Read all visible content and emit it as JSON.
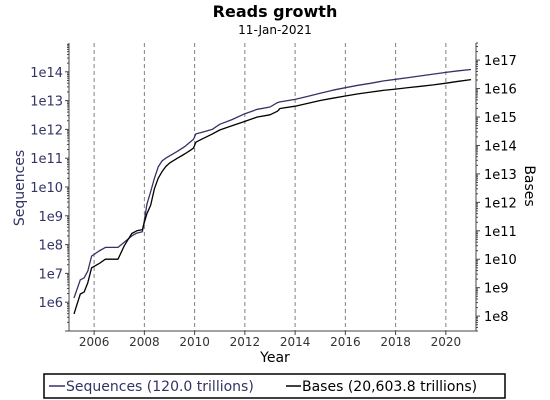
{
  "chart_data": {
    "type": "line",
    "title": "Reads growth",
    "subtitle": "11-Jan-2021",
    "xlabel": "Year",
    "ylabel_left": "Sequences",
    "ylabel_right": "Bases",
    "x_range": [
      2005.0,
      2021.2
    ],
    "x_ticks": [
      {
        "value": 2006,
        "label": "2006"
      },
      {
        "value": 2008,
        "label": "2008"
      },
      {
        "value": 2010,
        "label": "2010"
      },
      {
        "value": 2012,
        "label": "2012"
      },
      {
        "value": 2014,
        "label": "2014"
      },
      {
        "value": 2016,
        "label": "2016"
      },
      {
        "value": 2018,
        "label": "2018"
      },
      {
        "value": 2020,
        "label": "2020"
      }
    ],
    "y_left_scale": "log",
    "y_left_range": [
      100000.0,
      1000000000000000.0
    ],
    "y_left_ticks": [
      {
        "value": 1000000.0,
        "label": "1e6"
      },
      {
        "value": 10000000.0,
        "label": "1e7"
      },
      {
        "value": 100000000.0,
        "label": "1e8"
      },
      {
        "value": 1000000000.0,
        "label": "1e9"
      },
      {
        "value": 10000000000.0,
        "label": "1e10"
      },
      {
        "value": 100000000000.0,
        "label": "1e11"
      },
      {
        "value": 1000000000000.0,
        "label": "1e12"
      },
      {
        "value": 10000000000000.0,
        "label": "1e13"
      },
      {
        "value": 100000000000000.0,
        "label": "1e14"
      }
    ],
    "y_right_scale": "log",
    "y_right_range": [
      30000000.0,
      4e+17
    ],
    "y_right_ticks": [
      {
        "value": 100000000.0,
        "label": "1e8"
      },
      {
        "value": 1000000000.0,
        "label": "1e9"
      },
      {
        "value": 10000000000.0,
        "label": "1e10"
      },
      {
        "value": 100000000000.0,
        "label": "1e11"
      },
      {
        "value": 1000000000000.0,
        "label": "1e12"
      },
      {
        "value": 10000000000000.0,
        "label": "1e13"
      },
      {
        "value": 100000000000000.0,
        "label": "1e14"
      },
      {
        "value": 1000000000000000.0,
        "label": "1e15"
      },
      {
        "value": 1e+16,
        "label": "1e16"
      },
      {
        "value": 1e+17,
        "label": "1e17"
      }
    ],
    "vertical_grid": true,
    "legend_position": "bottom",
    "series": [
      {
        "name": "Sequences (120.0 trillions)",
        "axis": "left",
        "color": "#333366",
        "x": [
          2005.2,
          2005.45,
          2005.6,
          2005.75,
          2005.9,
          2006.2,
          2006.45,
          2006.7,
          2006.95,
          2007.2,
          2007.5,
          2007.7,
          2007.92,
          2008.0,
          2008.1,
          2008.25,
          2008.4,
          2008.55,
          2008.7,
          2008.85,
          2009.0,
          2009.3,
          2009.6,
          2009.8,
          2009.95,
          2010.05,
          2010.3,
          2010.7,
          2011.0,
          2011.5,
          2012.0,
          2012.5,
          2013.0,
          2013.3,
          2013.4,
          2014.0,
          2014.5,
          2015.0,
          2015.5,
          2016.0,
          2016.5,
          2017.0,
          2017.5,
          2018.0,
          2018.5,
          2019.0,
          2019.5,
          2020.0,
          2020.5,
          2021.0
        ],
        "values": [
          1400000.0,
          6000000.0,
          7000000.0,
          12000000.0,
          40000000.0,
          60000000.0,
          80000000.0,
          80000000.0,
          80000000.0,
          120000000.0,
          200000000.0,
          250000000.0,
          280000000.0,
          700000000.0,
          2500000000.0,
          7000000000.0,
          20000000000.0,
          50000000000.0,
          80000000000.0,
          100000000000.0,
          120000000000.0,
          170000000000.0,
          250000000000.0,
          350000000000.0,
          450000000000.0,
          700000000000.0,
          800000000000.0,
          1000000000000.0,
          1500000000000.0,
          2200000000000.0,
          3500000000000.0,
          5000000000000.0,
          6000000000000.0,
          8500000000000.0,
          9000000000000.0,
          11000000000000.0,
          14000000000000.0,
          18000000000000.0,
          23000000000000.0,
          28000000000000.0,
          34000000000000.0,
          40000000000000.0,
          48000000000000.0,
          55000000000000.0,
          63000000000000.0,
          72000000000000.0,
          83000000000000.0,
          95000000000000.0,
          108000000000000.0,
          120000000000000.0
        ]
      },
      {
        "name": "Bases (20,603.8 trillions)",
        "axis": "right",
        "color": "#000000",
        "x": [
          2005.2,
          2005.45,
          2005.6,
          2005.75,
          2005.9,
          2006.2,
          2006.45,
          2006.7,
          2006.95,
          2007.2,
          2007.5,
          2007.7,
          2007.92,
          2008.0,
          2008.1,
          2008.25,
          2008.4,
          2008.55,
          2008.7,
          2008.85,
          2009.0,
          2009.3,
          2009.6,
          2009.8,
          2009.95,
          2010.05,
          2010.3,
          2010.7,
          2011.0,
          2011.5,
          2012.0,
          2012.5,
          2013.0,
          2013.3,
          2013.4,
          2014.0,
          2014.5,
          2015.0,
          2015.5,
          2016.0,
          2016.5,
          2017.0,
          2017.5,
          2018.0,
          2018.5,
          2019.0,
          2019.5,
          2020.0,
          2020.5,
          2021.0
        ],
        "values": [
          120000000.0,
          600000000.0,
          700000000.0,
          1500000000.0,
          5000000000.0,
          7000000000.0,
          10000000000.0,
          10000000000.0,
          10000000000.0,
          30000000000.0,
          80000000000.0,
          100000000000.0,
          110000000000.0,
          200000000000.0,
          400000000000.0,
          800000000000.0,
          3000000000000.0,
          7000000000000.0,
          12000000000000.0,
          18000000000000.0,
          24000000000000.0,
          35000000000000.0,
          50000000000000.0,
          65000000000000.0,
          80000000000000.0,
          130000000000000.0,
          170000000000000.0,
          250000000000000.0,
          350000000000000.0,
          500000000000000.0,
          700000000000000.0,
          1000000000000000.0,
          1200000000000000.0,
          1600000000000000.0,
          2000000000000000.0,
          2400000000000000.0,
          3000000000000000.0,
          3800000000000000.0,
          4600000000000000.0,
          5500000000000000.0,
          6500000000000000.0,
          7500000000000000.0,
          8600000000000000.0,
          9600000000000000.0,
          1.08e+16,
          1.2e+16,
          1.35e+16,
          1.55e+16,
          1.8e+16,
          2.06e+16
        ]
      }
    ]
  }
}
